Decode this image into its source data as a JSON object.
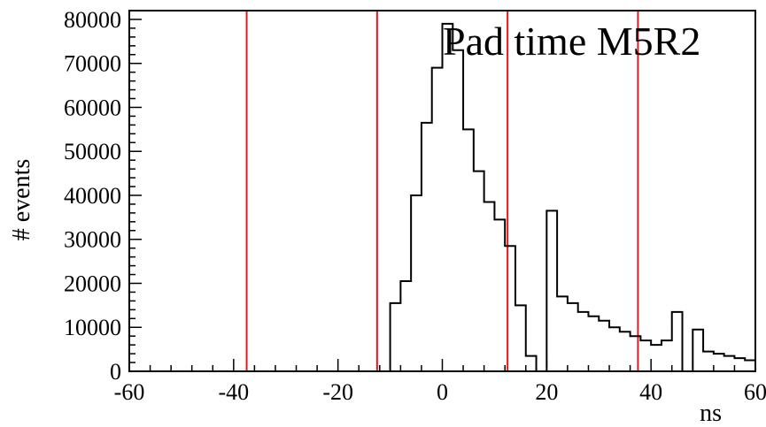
{
  "chart_data": {
    "type": "histogram",
    "title": "Pad time M5R2",
    "xlabel": "ns",
    "ylabel": "# events",
    "xlim": [
      -60,
      60
    ],
    "ylim": [
      0,
      82000
    ],
    "bin_width": 2,
    "x_ticks": [
      -60,
      -40,
      -20,
      0,
      20,
      40,
      60
    ],
    "y_ticks": [
      0,
      10000,
      20000,
      30000,
      40000,
      50000,
      60000,
      70000,
      80000
    ],
    "bins": [
      {
        "x": -60,
        "y": 0
      },
      {
        "x": -58,
        "y": 0
      },
      {
        "x": -56,
        "y": 0
      },
      {
        "x": -54,
        "y": 0
      },
      {
        "x": -52,
        "y": 0
      },
      {
        "x": -50,
        "y": 0
      },
      {
        "x": -48,
        "y": 0
      },
      {
        "x": -46,
        "y": 0
      },
      {
        "x": -44,
        "y": 0
      },
      {
        "x": -42,
        "y": 0
      },
      {
        "x": -40,
        "y": 0
      },
      {
        "x": -38,
        "y": 0
      },
      {
        "x": -36,
        "y": 0
      },
      {
        "x": -34,
        "y": 0
      },
      {
        "x": -32,
        "y": 0
      },
      {
        "x": -30,
        "y": 0
      },
      {
        "x": -28,
        "y": 0
      },
      {
        "x": -26,
        "y": 0
      },
      {
        "x": -24,
        "y": 0
      },
      {
        "x": -22,
        "y": 0
      },
      {
        "x": -20,
        "y": 0
      },
      {
        "x": -18,
        "y": 0
      },
      {
        "x": -16,
        "y": 0
      },
      {
        "x": -14,
        "y": 0
      },
      {
        "x": -12,
        "y": 0
      },
      {
        "x": -10,
        "y": 15500
      },
      {
        "x": -8,
        "y": 20500
      },
      {
        "x": -6,
        "y": 40000
      },
      {
        "x": -4,
        "y": 56500
      },
      {
        "x": -2,
        "y": 69000
      },
      {
        "x": 0,
        "y": 79000
      },
      {
        "x": 2,
        "y": 73000
      },
      {
        "x": 4,
        "y": 55000
      },
      {
        "x": 6,
        "y": 45500
      },
      {
        "x": 8,
        "y": 38500
      },
      {
        "x": 10,
        "y": 34500
      },
      {
        "x": 12,
        "y": 28500
      },
      {
        "x": 14,
        "y": 15000
      },
      {
        "x": 16,
        "y": 3500
      },
      {
        "x": 18,
        "y": 0
      },
      {
        "x": 20,
        "y": 36500
      },
      {
        "x": 22,
        "y": 17000
      },
      {
        "x": 24,
        "y": 15500
      },
      {
        "x": 26,
        "y": 13500
      },
      {
        "x": 28,
        "y": 12500
      },
      {
        "x": 30,
        "y": 11500
      },
      {
        "x": 32,
        "y": 10000
      },
      {
        "x": 34,
        "y": 9000
      },
      {
        "x": 36,
        "y": 8000
      },
      {
        "x": 38,
        "y": 7000
      },
      {
        "x": 40,
        "y": 6000
      },
      {
        "x": 42,
        "y": 7000
      },
      {
        "x": 44,
        "y": 13500
      },
      {
        "x": 46,
        "y": 0
      },
      {
        "x": 48,
        "y": 9500
      },
      {
        "x": 50,
        "y": 4500
      },
      {
        "x": 52,
        "y": 4000
      },
      {
        "x": 54,
        "y": 3500
      },
      {
        "x": 56,
        "y": 3000
      },
      {
        "x": 58,
        "y": 2500
      }
    ],
    "vertical_lines": [
      {
        "x": -37.5,
        "color": "#e8161b"
      },
      {
        "x": -12.5,
        "color": "#e8161b"
      },
      {
        "x": 12.5,
        "color": "#e8161b"
      },
      {
        "x": 37.5,
        "color": "#e8161b"
      }
    ],
    "line_color": "#000000",
    "grid": false,
    "legend": "none"
  }
}
